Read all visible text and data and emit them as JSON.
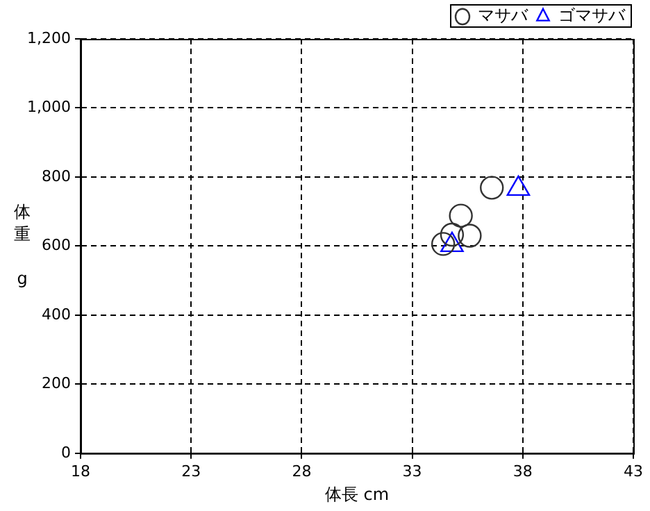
{
  "chart_data": {
    "type": "scatter",
    "xlabel": "体長 cm",
    "ylabel": "体重 g",
    "xlim": [
      18,
      43
    ],
    "xticks": [
      18,
      23,
      28,
      33,
      38,
      43
    ],
    "ylim": [
      0,
      1200
    ],
    "yticks": [
      0,
      200,
      400,
      600,
      800,
      {
        "value": 1000,
        "label": "1,000"
      },
      {
        "value": 1200,
        "label": "1,200"
      }
    ],
    "grid": true,
    "legend": "top right",
    "series": [
      {
        "name": "マサバ",
        "color": "#333333",
        "marker": "circle",
        "x": [
          36.6,
          35.2,
          35.6,
          34.8,
          34.4
        ],
        "values": [
          769,
          688,
          630,
          633,
          606
        ]
      },
      {
        "name": "ゴマサバ",
        "color": "#0000ff",
        "marker": "triangle",
        "x": [
          37.8,
          34.8
        ],
        "values": [
          766,
          603
        ]
      }
    ]
  }
}
